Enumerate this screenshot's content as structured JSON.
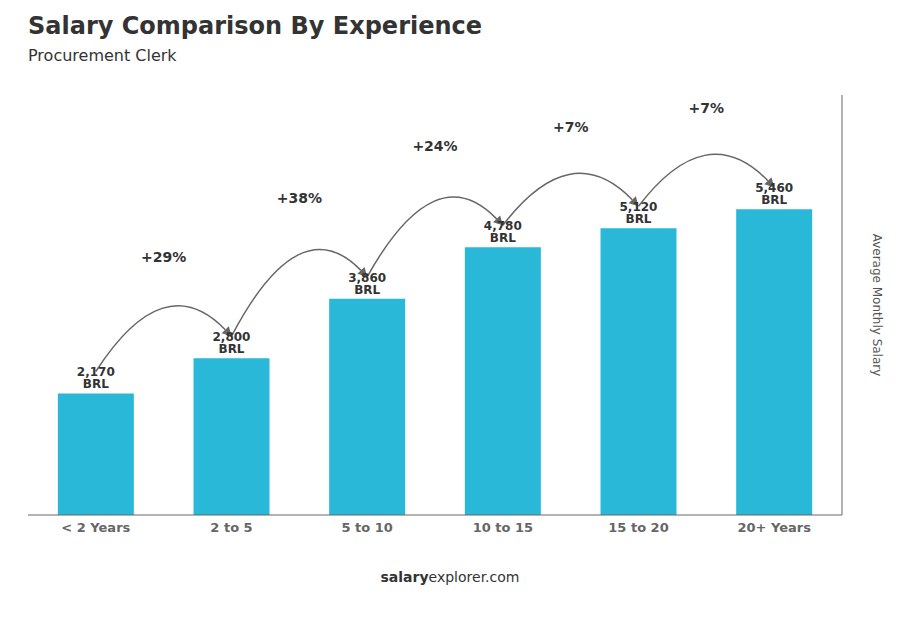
{
  "chart_data": {
    "type": "bar",
    "title": "Salary Comparison By Experience",
    "subtitle": "Procurement Clerk",
    "categories": [
      "< 2 Years",
      "2 to 5",
      "5 to 10",
      "10 to 15",
      "15 to 20",
      "20+ Years"
    ],
    "values": [
      2170,
      2800,
      3860,
      4780,
      5120,
      5460
    ],
    "value_labels": [
      "2,170 BRL",
      "2,800 BRL",
      "3,860 BRL",
      "4,780 BRL",
      "5,120 BRL",
      "5,460 BRL"
    ],
    "data_labels": true,
    "color": "#29B8D8",
    "ylim": [
      0,
      7500
    ],
    "ylabel": "Average Monthly Salary",
    "tick_labels": "x",
    "annotations": [
      "+29%",
      "+38%",
      "+24%",
      "+7%",
      "+7%"
    ],
    "footer": [
      "salary",
      "explorer.com"
    ]
  }
}
